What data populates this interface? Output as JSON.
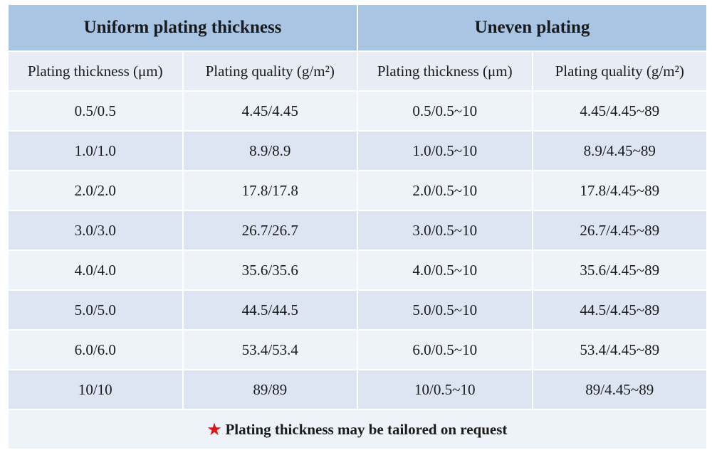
{
  "table": {
    "group_headers": [
      {
        "label": "Uniform plating thickness"
      },
      {
        "label": "Uneven plating"
      }
    ],
    "column_headers": [
      "Plating thickness (μm)",
      "Plating quality (g/m²)",
      "Plating thickness (μm)",
      "Plating quality (g/m²)"
    ],
    "rows": [
      [
        "0.5/0.5",
        "4.45/4.45",
        "0.5/0.5~10",
        "4.45/4.45~89"
      ],
      [
        "1.0/1.0",
        "8.9/8.9",
        "1.0/0.5~10",
        "8.9/4.45~89"
      ],
      [
        "2.0/2.0",
        "17.8/17.8",
        "2.0/0.5~10",
        "17.8/4.45~89"
      ],
      [
        "3.0/3.0",
        "26.7/26.7",
        "3.0/0.5~10",
        "26.7/4.45~89"
      ],
      [
        "4.0/4.0",
        "35.6/35.6",
        "4.0/0.5~10",
        "35.6/4.45~89"
      ],
      [
        "5.0/5.0",
        "44.5/44.5",
        "5.0/0.5~10",
        "44.5/4.45~89"
      ],
      [
        "6.0/6.0",
        "53.4/53.4",
        "6.0/0.5~10",
        "53.4/4.45~89"
      ],
      [
        "10/10",
        "89/89",
        "10/0.5~10",
        "89/4.45~89"
      ]
    ],
    "footnote": "Plating thickness may be tailored on request",
    "footnote_icon": "★",
    "colors": {
      "group_header_bg": "#a9c5e4",
      "row_light_bg": "#eef2f9",
      "row_dark_bg": "#dde5f2",
      "footnote_text": "#e01414"
    }
  }
}
